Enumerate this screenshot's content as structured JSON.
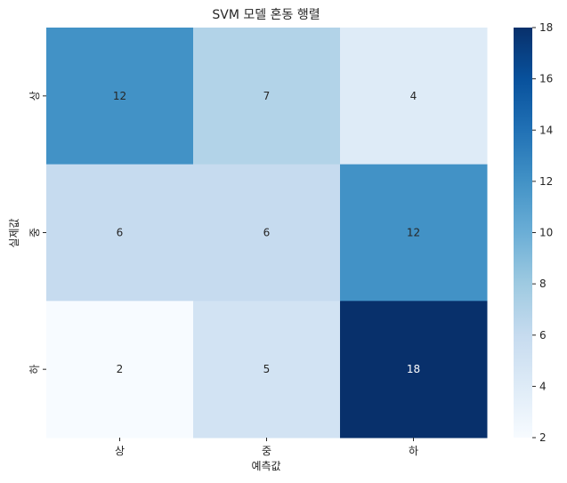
{
  "chart_data": {
    "type": "heatmap",
    "title": "SVM 모델 혼동 행렬",
    "xlabel": "예측값",
    "ylabel": "실제값",
    "x_categories": [
      "상",
      "중",
      "하"
    ],
    "y_categories": [
      "상",
      "중",
      "하"
    ],
    "values": [
      [
        12,
        7,
        4
      ],
      [
        6,
        6,
        12
      ],
      [
        2,
        5,
        18
      ]
    ],
    "colormap": "Blues",
    "colorbar": {
      "range": [
        2,
        18
      ],
      "ticks": [
        2,
        4,
        6,
        8,
        10,
        12,
        14,
        16,
        18
      ]
    },
    "grid": false,
    "legend": "colorbar-right"
  }
}
